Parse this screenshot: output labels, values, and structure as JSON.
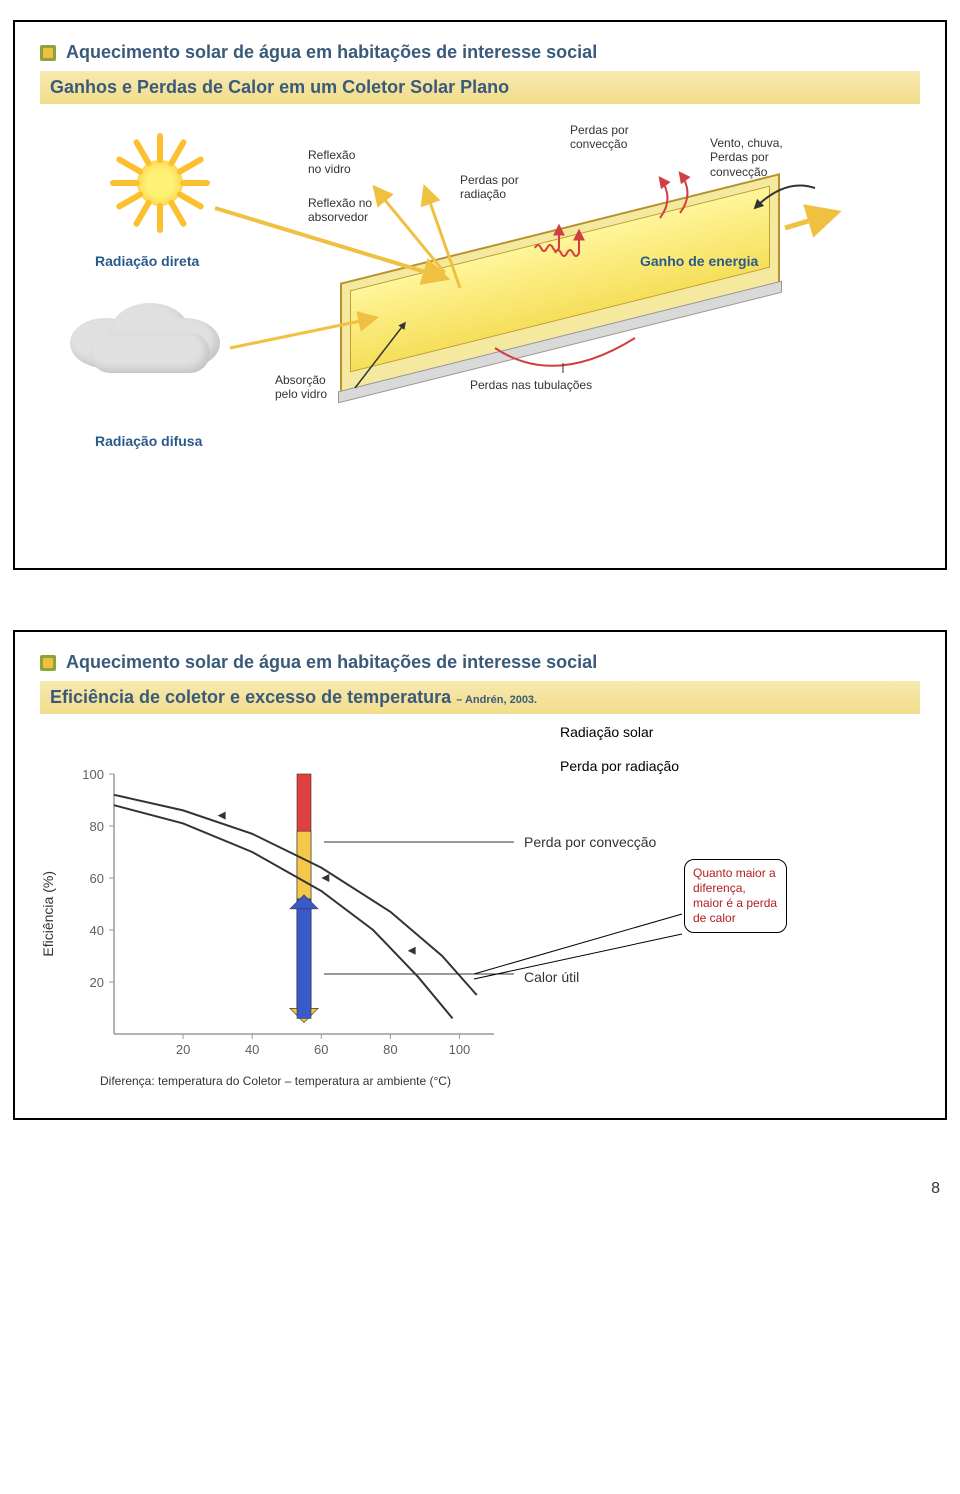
{
  "slide1": {
    "title": "Aquecimento solar de água em habitações de interesse social",
    "subtitle": "Ganhos e Perdas de Calor em um Coletor Solar Plano",
    "labels": {
      "radiacao_direta": "Radiação direta",
      "reflexao_vidro": "Reflexão\nno vidro",
      "reflexao_absorvedor": "Reflexão no\nabsorvedor",
      "perdas_radiacao": "Perdas por\nradiação",
      "perdas_conveccao": "Perdas por\nconvecção",
      "vento_chuva": "Vento, chuva,\nPerdas por\nconvecção",
      "ganho_energia": "Ganho de energia",
      "absorcao_vidro": "Absorção\npelo vidro",
      "perdas_tubulacoes": "Perdas nas tubulações",
      "radiacao_difusa": "Radiação difusa"
    },
    "colors": {
      "title": "#3a5a7a",
      "band_top": "#f7e9b0",
      "band_bot": "#f2dd8a",
      "panel_border": "#b89030",
      "panel_fill_top": "#fff59a",
      "panel_fill_bot": "#f5df5a",
      "sun_outer": "#fbc02d",
      "sun_inner": "#fff176",
      "cloud": "#e0e0e0",
      "arrow_yellow": "#f0c040",
      "arrow_red": "#d04040",
      "arrow_blue": "#2a5a8a"
    }
  },
  "slide2": {
    "title": "Aquecimento solar de água em habitações de interesse social",
    "subtitle": "Eficiência de coletor e excesso de temperatura",
    "subtitle_suffix": "– Andrén, 2003.",
    "ylabel": "Eficiência (%)",
    "xlabel": "Diferença: temperatura do Coletor – temperatura ar ambiente (°C)",
    "labels": {
      "radiacao_solar": "Radiação solar",
      "perda_radiacao": "Perda por radiação",
      "perda_conveccao": "Perda por convecção",
      "calor_util": "Calor útil"
    },
    "callout": "Quanto maior a diferença, maior é a perda de calor",
    "chart": {
      "type": "line",
      "xlim": [
        0,
        110
      ],
      "ylim": [
        0,
        100
      ],
      "xticks": [
        20,
        40,
        60,
        80,
        100
      ],
      "yticks": [
        20,
        40,
        60,
        80,
        100
      ],
      "series": [
        {
          "name": "upper",
          "points": [
            [
              0,
              92
            ],
            [
              20,
              86
            ],
            [
              40,
              77
            ],
            [
              60,
              64
            ],
            [
              80,
              47
            ],
            [
              95,
              30
            ],
            [
              105,
              15
            ]
          ],
          "color": "#333333",
          "width": 2
        },
        {
          "name": "lower",
          "points": [
            [
              0,
              88
            ],
            [
              20,
              81
            ],
            [
              40,
              70
            ],
            [
              60,
              55
            ],
            [
              75,
              40
            ],
            [
              88,
              22
            ],
            [
              98,
              6
            ]
          ],
          "color": "#333333",
          "width": 2
        }
      ],
      "bars": [
        {
          "x": 55,
          "y0": 6,
          "y1": 100,
          "width": 14,
          "fill": "#e04040",
          "dir": "down",
          "role": "radiation"
        },
        {
          "x": 55,
          "y0": 6,
          "y1": 78,
          "width": 14,
          "fill": "#f6c84a",
          "dir": "down",
          "role": "convection"
        },
        {
          "x": 55,
          "y0": 6,
          "y1": 52,
          "width": 14,
          "fill": "#3a5acc",
          "dir": "up",
          "role": "useful"
        }
      ],
      "axis_color": "#999999",
      "tick_fontsize": 13,
      "tick_color": "#606060",
      "background": "#ffffff"
    },
    "colors": {
      "callout_text": "#b02020",
      "callout_border": "#000000"
    }
  },
  "page_number": "8"
}
